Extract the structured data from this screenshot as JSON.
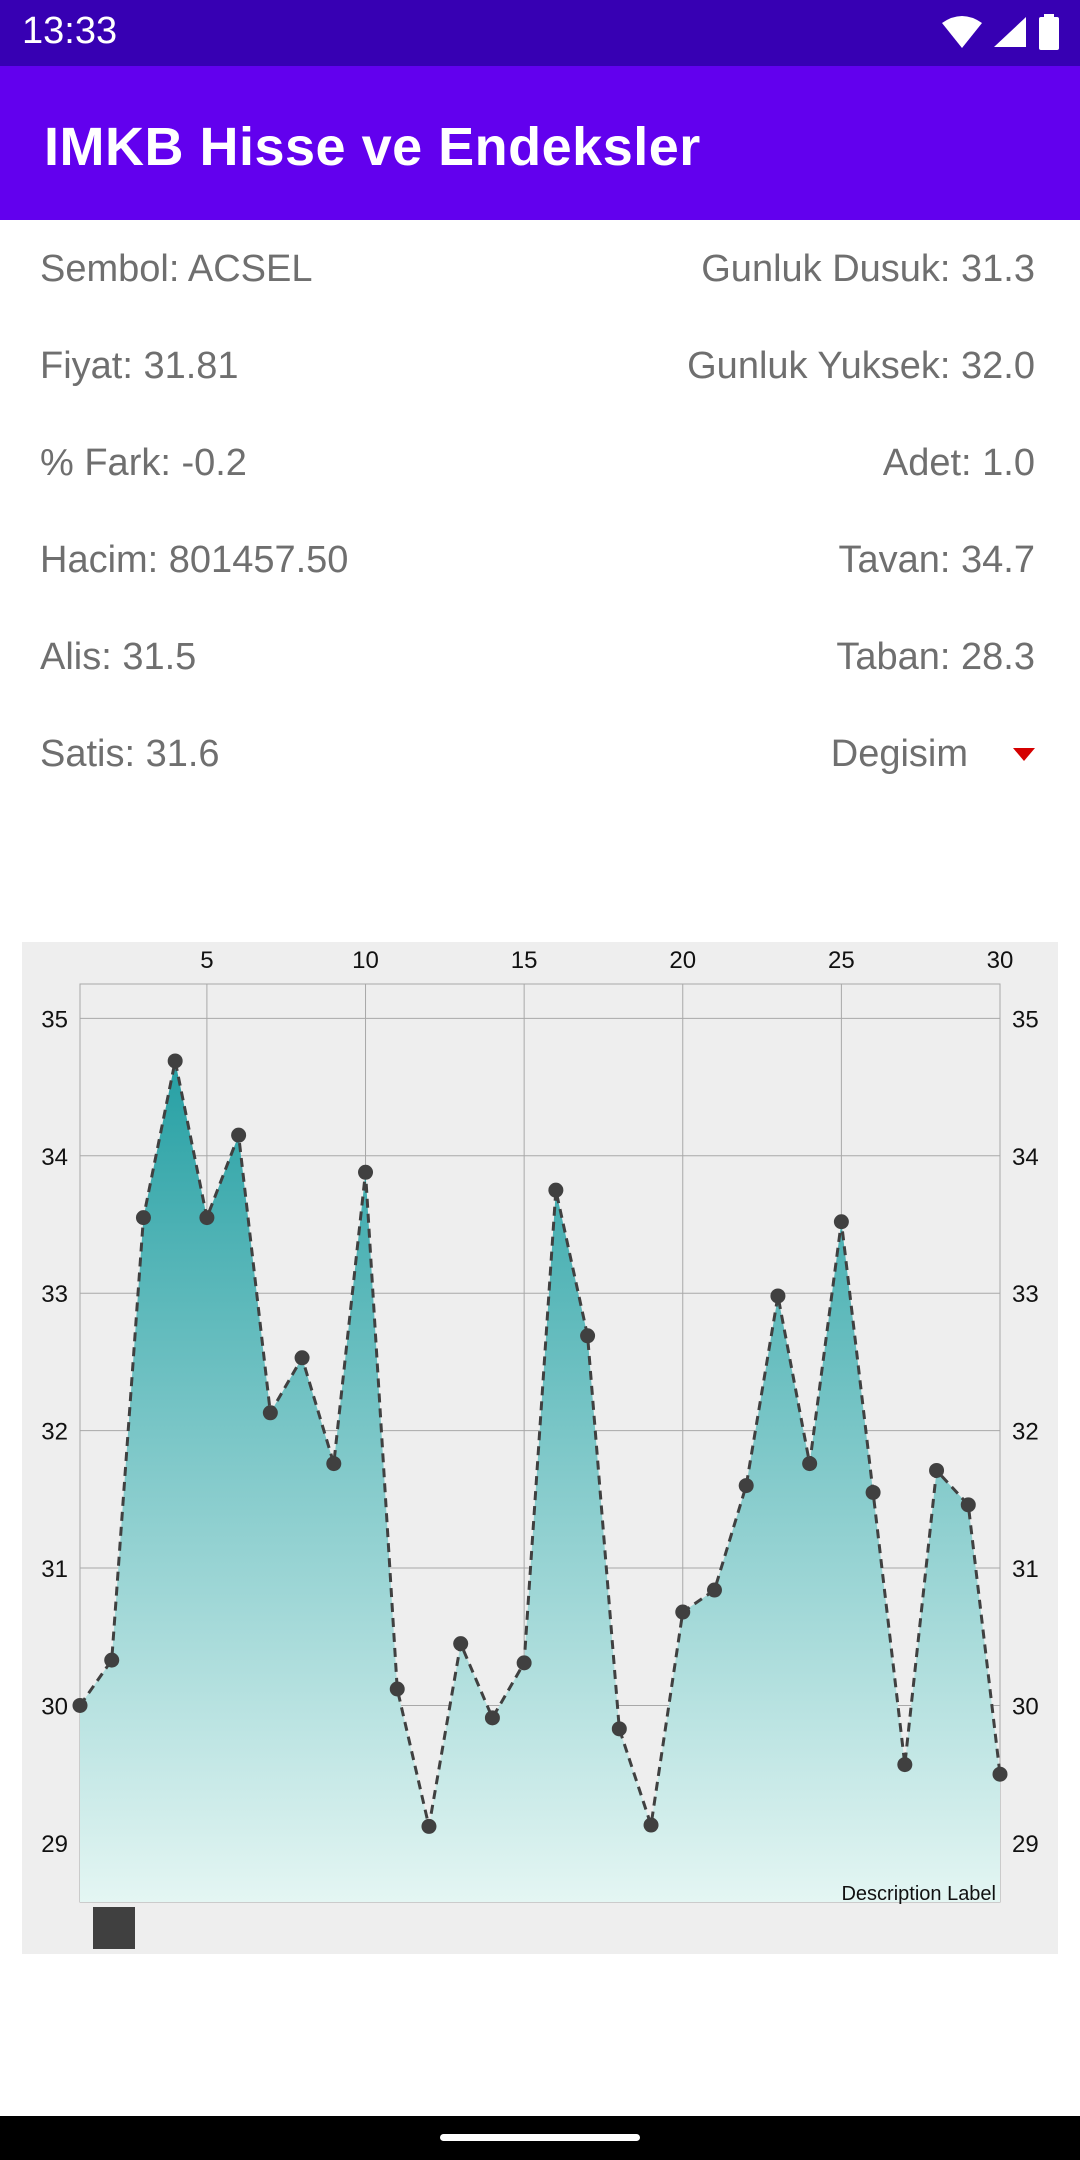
{
  "status_bar": {
    "time": "13:33"
  },
  "app_bar": {
    "title": "IMKB Hisse ve Endeksler"
  },
  "info": {
    "sembol": "Sembol: ACSEL",
    "fiyat": "Fiyat: 31.81",
    "fark": "% Fark: -0.2",
    "hacim": "Hacim: 801457.50",
    "alis": "Alis: 31.5",
    "satis": "Satis: 31.6",
    "gunluk_dusuk": "Gunluk Dusuk: 31.3",
    "gunluk_yuksek": "Gunluk Yuksek: 32.0",
    "adet": "Adet: 1.0",
    "tavan": "Tavan: 34.7",
    "taban": "Taban: 28.3",
    "degisim": "Degisim"
  },
  "colors": {
    "status_bar": "#3700b3",
    "app_bar": "#6200ee",
    "fill_top": "#26a0a4",
    "fill_bottom": "#e4f6f3",
    "line": "#404040",
    "down_arrow": "#d50000"
  },
  "chart_data": {
    "type": "area",
    "x": [
      1,
      2,
      3,
      4,
      5,
      6,
      7,
      8,
      9,
      10,
      11,
      12,
      13,
      14,
      15,
      16,
      17,
      18,
      19,
      20,
      21,
      22,
      23,
      24,
      25,
      26,
      27,
      28,
      29,
      30
    ],
    "values": [
      30.0,
      30.33,
      33.55,
      34.69,
      33.55,
      34.15,
      32.13,
      32.53,
      31.76,
      33.88,
      30.12,
      29.12,
      30.45,
      29.91,
      30.31,
      33.75,
      32.69,
      29.83,
      29.13,
      30.68,
      30.84,
      31.6,
      32.98,
      31.76,
      33.52,
      31.55,
      29.57,
      31.71,
      31.46,
      29.5
    ],
    "xlim": [
      1,
      30
    ],
    "ylim": [
      28.57,
      35.25
    ],
    "x_ticks": [
      "5",
      "10",
      "15",
      "20",
      "25",
      "30"
    ],
    "y_ticks_left": [
      "29",
      "30",
      "31",
      "32",
      "33",
      "34",
      "35"
    ],
    "y_ticks_right": [
      "29",
      "30",
      "31",
      "32",
      "33",
      "34",
      "35"
    ],
    "x_axis_position": "top",
    "grid": true,
    "line_style": "dashed",
    "markers": "circle",
    "description": "Description Label"
  }
}
